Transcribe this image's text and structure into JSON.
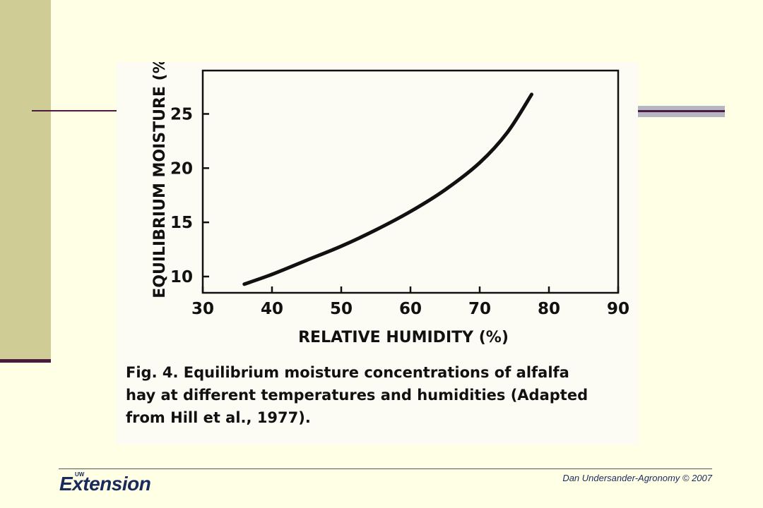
{
  "chart_data": {
    "type": "line",
    "xlabel": "RELATIVE HUMIDITY (%)",
    "ylabel": "EQUILIBRIUM MOISTURE (%)",
    "xlim": [
      30,
      90
    ],
    "ylim": [
      8.5,
      29
    ],
    "x_ticks": [
      30,
      40,
      50,
      60,
      70,
      80,
      90
    ],
    "y_ticks": [
      10,
      15,
      20,
      25
    ],
    "grid": false,
    "series": [
      {
        "x": [
          36,
          40,
          45,
          50,
          55,
          60,
          65,
          70,
          74,
          77.5
        ],
        "y": [
          9.3,
          10.2,
          11.5,
          12.8,
          14.3,
          16.0,
          18.0,
          20.5,
          23.3,
          26.8
        ]
      }
    ]
  },
  "caption": {
    "line1": "Fig. 4.  Equilibrium moisture concentrations of alfalfa",
    "line2": "hay at different temperatures and humidities (Adapted",
    "line3": "from Hill et al., 1977)."
  },
  "footer": {
    "logo_small": "UW",
    "logo_word": "Extension",
    "credit": "Dan  Undersander-Agronomy © 2007"
  },
  "colors": {
    "background": "#ffffe5",
    "band": "#cfcc96",
    "accent": "#4b1a3e",
    "logo": "#1a2a5c"
  }
}
